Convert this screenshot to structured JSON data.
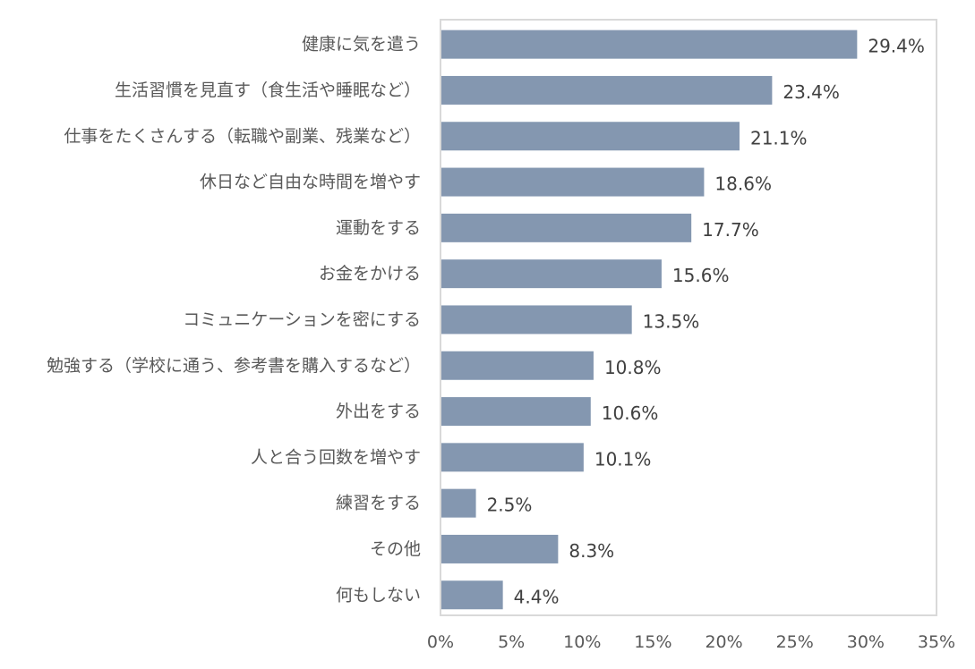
{
  "chart_data": {
    "type": "bar",
    "orientation": "horizontal",
    "title": "",
    "xlabel": "",
    "ylabel": "",
    "xlim": [
      0,
      35
    ],
    "x_ticks": [
      0,
      5,
      10,
      15,
      20,
      25,
      30,
      35
    ],
    "tick_suffix": "%",
    "grid": false,
    "legend": "none",
    "categories": [
      "健康に気を遣う",
      "生活習慣を見直す（食生活や睡眠など）",
      "仕事をたくさんする（転職や副業、残業など）",
      "休日など自由な時間を増やす",
      "運動をする",
      "お金をかける",
      "コミュニケーションを密にする",
      "勉強する（学校に通う、参考書を購入するなど）",
      "外出をする",
      "人と合う回数を増やす",
      "練習をする",
      "その他",
      "何もしない"
    ],
    "values": [
      29.4,
      23.4,
      21.1,
      18.6,
      17.7,
      15.6,
      13.5,
      10.8,
      10.6,
      10.1,
      2.5,
      8.3,
      4.4
    ],
    "value_labels": [
      "29.4%",
      "23.4%",
      "21.1%",
      "18.6%",
      "17.7%",
      "15.6%",
      "13.5%",
      "10.8%",
      "10.6%",
      "10.1%",
      "2.5%",
      "8.3%",
      "4.4%"
    ],
    "colors": {
      "bar": "#8497B0",
      "frame": "#D9D9D9",
      "category_text": "#595959",
      "value_text": "#404040",
      "tick_text": "#595959"
    }
  }
}
